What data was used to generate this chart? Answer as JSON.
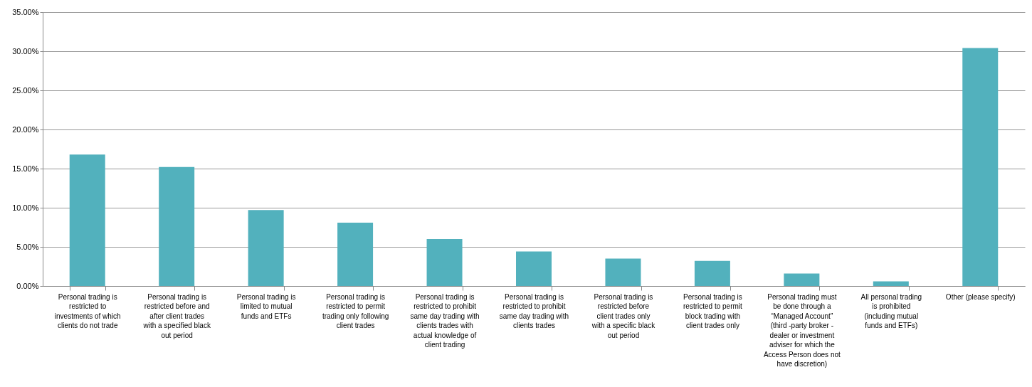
{
  "chart_data": {
    "type": "bar",
    "categories": [
      "Personal trading is restricted to investments of which clients do not trade",
      "Personal trading is restricted before and after client trades with a specified black out period",
      "Personal trading is limited to mutual funds and ETFs",
      "Personal trading is restricted to permit trading only following client trades",
      "Personal trading is restricted to prohibit same day trading with clients trades with actual knowledge of client trading",
      "Personal trading is restricted to prohibit same day trading with clients trades",
      "Personal trading is restricted before client trades only with a specific black out period",
      "Personal trading is restricted to permit block trading with client trades only",
      "Personal trading must be done through a “Managed Account” (third -party broker - dealer or investment adviser for which the Access Person does not have discretion)",
      "All personal trading is prohibited (including mutual funds and ETFs)",
      "Other (please specify)"
    ],
    "values": [
      16.8,
      15.2,
      9.7,
      8.1,
      6.0,
      4.4,
      3.5,
      3.2,
      1.6,
      0.6,
      30.4
    ],
    "color": "#52b1bd",
    "ylim": [
      0,
      35
    ],
    "yticks": [
      {
        "value": 0,
        "label": "0.00%"
      },
      {
        "value": 5,
        "label": "5.00%"
      },
      {
        "value": 10,
        "label": "10.00%"
      },
      {
        "value": 15,
        "label": "15.00%"
      },
      {
        "value": 20,
        "label": "20.00%"
      },
      {
        "value": 25,
        "label": "25.00%"
      },
      {
        "value": 30,
        "label": "30.00%"
      },
      {
        "value": 35,
        "label": "35.00%"
      }
    ],
    "grid": "y"
  }
}
